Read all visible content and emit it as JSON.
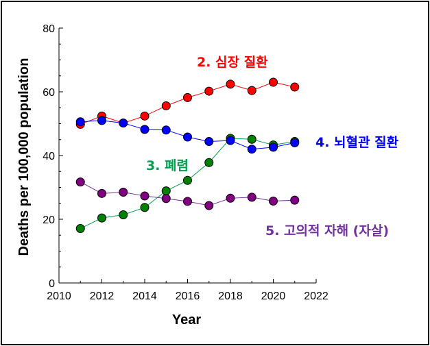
{
  "chart_data": {
    "type": "line",
    "xlabel": "Year",
    "ylabel": "Deaths per 100,000 population",
    "xlim": [
      2010,
      2022
    ],
    "ylim": [
      0,
      80
    ],
    "xticks": [
      2010,
      2012,
      2014,
      2016,
      2018,
      2020,
      2022
    ],
    "yticks": [
      0,
      20,
      40,
      60,
      80
    ],
    "grid": false,
    "x": [
      2011,
      2012,
      2013,
      2014,
      2015,
      2016,
      2017,
      2018,
      2019,
      2020,
      2021
    ],
    "series": [
      {
        "name": "2. 심장 질환",
        "line_color": "#ff0000",
        "marker_color": "#ff0000",
        "values": [
          49.8,
          52.4,
          50.2,
          52.4,
          55.6,
          58.2,
          60.2,
          62.4,
          60.4,
          63.0,
          61.5
        ]
      },
      {
        "name": "3. 폐렴",
        "line_color": "#00a050",
        "marker_color": "#008000",
        "values": [
          17.1,
          20.4,
          21.4,
          23.7,
          28.9,
          32.2,
          37.8,
          45.4,
          45.1,
          43.3,
          44.4
        ]
      },
      {
        "name": "4. 뇌혈관 질환",
        "line_color": "#0000ff",
        "marker_color": "#0000ff",
        "values": [
          50.6,
          51.0,
          50.2,
          48.2,
          48.0,
          45.8,
          44.4,
          44.7,
          42.0,
          42.6,
          44.0
        ]
      },
      {
        "name": "5. 고의적 자해 (자살)",
        "line_color": "#7030a0",
        "marker_color": "#800080",
        "values": [
          31.7,
          28.1,
          28.5,
          27.3,
          26.5,
          25.6,
          24.3,
          26.6,
          26.9,
          25.7,
          26.0
        ]
      }
    ]
  }
}
